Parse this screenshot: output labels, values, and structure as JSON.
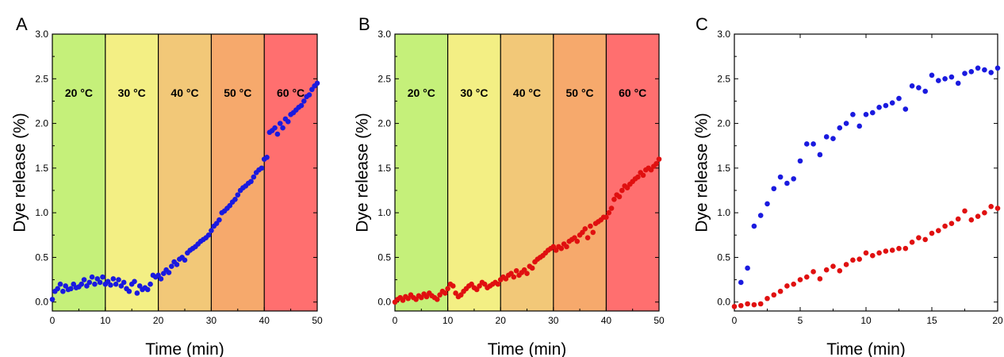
{
  "chart_data": [
    {
      "panel_label": "A",
      "type": "scatter",
      "xlabel": "Time (min)",
      "ylabel": "Dye release (%)",
      "xlim": [
        0,
        50
      ],
      "ylim": [
        -0.1,
        3.0
      ],
      "xticks": [
        0,
        10,
        20,
        30,
        40,
        50
      ],
      "yticks": [
        0.0,
        0.5,
        1.0,
        1.5,
        2.0,
        2.5,
        3.0
      ],
      "x_tick_labels": [
        "0",
        "10",
        "20",
        "30",
        "40",
        "50"
      ],
      "y_tick_labels": [
        "0.0",
        "0.5",
        "1.0",
        "1.5",
        "2.0",
        "2.5",
        "3.0"
      ],
      "bands": [
        {
          "label": "20 °C",
          "x0": 0,
          "x1": 10,
          "color": "#c5f07a"
        },
        {
          "label": "30 °C",
          "x0": 10,
          "x1": 20,
          "color": "#f3ef84"
        },
        {
          "label": "40 °C",
          "x0": 20,
          "x1": 30,
          "color": "#f2c878"
        },
        {
          "label": "50 °C",
          "x0": 30,
          "x1": 40,
          "color": "#f6a96c"
        },
        {
          "label": "60 °C",
          "x0": 40,
          "x1": 50,
          "color": "#ff6f6f"
        }
      ],
      "series": [
        {
          "color": "#1a1adf",
          "x": [
            0.0,
            0.5,
            1.0,
            1.5,
            2.0,
            2.5,
            3.0,
            3.5,
            4.0,
            4.5,
            5.0,
            5.5,
            6.0,
            6.5,
            7.0,
            7.5,
            8.0,
            8.5,
            9.0,
            9.5,
            10.0,
            10.5,
            11.0,
            11.5,
            12.0,
            12.5,
            13.0,
            13.5,
            14.0,
            14.5,
            15.0,
            15.5,
            16.0,
            16.5,
            17.0,
            17.5,
            18.0,
            18.5,
            19.0,
            19.5,
            20.0,
            20.5,
            21.0,
            21.5,
            22.0,
            22.5,
            23.0,
            23.5,
            24.0,
            24.5,
            25.0,
            25.5,
            26.0,
            26.5,
            27.0,
            27.5,
            28.0,
            28.5,
            29.0,
            29.5,
            30.0,
            30.5,
            31.0,
            31.5,
            32.0,
            32.5,
            33.0,
            33.5,
            34.0,
            34.5,
            35.0,
            35.5,
            36.0,
            36.5,
            37.0,
            37.5,
            38.0,
            38.5,
            39.0,
            39.5,
            40.0,
            40.5,
            41.0,
            41.5,
            42.0,
            42.5,
            43.0,
            43.5,
            44.0,
            44.5,
            45.0,
            45.5,
            46.0,
            46.5,
            47.0,
            47.5,
            48.0,
            48.5,
            49.0,
            49.5,
            50.0
          ],
          "y": [
            0.03,
            0.12,
            0.15,
            0.2,
            0.12,
            0.18,
            0.14,
            0.15,
            0.2,
            0.16,
            0.17,
            0.2,
            0.25,
            0.18,
            0.22,
            0.28,
            0.2,
            0.26,
            0.22,
            0.28,
            0.2,
            0.23,
            0.19,
            0.26,
            0.2,
            0.25,
            0.18,
            0.22,
            0.15,
            0.12,
            0.2,
            0.23,
            0.1,
            0.18,
            0.14,
            0.16,
            0.14,
            0.2,
            0.3,
            0.28,
            0.3,
            0.26,
            0.32,
            0.36,
            0.33,
            0.4,
            0.45,
            0.42,
            0.48,
            0.5,
            0.47,
            0.55,
            0.58,
            0.6,
            0.62,
            0.65,
            0.68,
            0.7,
            0.72,
            0.75,
            0.8,
            0.85,
            0.88,
            0.92,
            1.0,
            1.02,
            1.05,
            1.08,
            1.12,
            1.15,
            1.2,
            1.25,
            1.28,
            1.3,
            1.33,
            1.35,
            1.4,
            1.45,
            1.48,
            1.5,
            1.6,
            1.62,
            1.9,
            1.92,
            1.95,
            1.88,
            2.0,
            1.95,
            2.05,
            2.02,
            2.1,
            2.12,
            2.15,
            2.18,
            2.2,
            2.25,
            2.3,
            2.32,
            2.38,
            2.42,
            2.45
          ]
        }
      ]
    },
    {
      "panel_label": "B",
      "type": "scatter",
      "xlabel": "Time (min)",
      "ylabel": "Dye release (%)",
      "xlim": [
        0,
        50
      ],
      "ylim": [
        -0.1,
        3.0
      ],
      "xticks": [
        0,
        10,
        20,
        30,
        40,
        50
      ],
      "yticks": [
        0.0,
        0.5,
        1.0,
        1.5,
        2.0,
        2.5,
        3.0
      ],
      "x_tick_labels": [
        "0",
        "10",
        "20",
        "30",
        "40",
        "50"
      ],
      "y_tick_labels": [
        "0.0",
        "0.5",
        "1.0",
        "1.5",
        "2.0",
        "2.5",
        "3.0"
      ],
      "bands": [
        {
          "label": "20 °C",
          "x0": 0,
          "x1": 10,
          "color": "#c5f07a"
        },
        {
          "label": "30 °C",
          "x0": 10,
          "x1": 20,
          "color": "#f3ef84"
        },
        {
          "label": "40 °C",
          "x0": 20,
          "x1": 30,
          "color": "#f2c878"
        },
        {
          "label": "50 °C",
          "x0": 30,
          "x1": 40,
          "color": "#f6a96c"
        },
        {
          "label": "60 °C",
          "x0": 40,
          "x1": 50,
          "color": "#ff6f6f"
        }
      ],
      "series": [
        {
          "color": "#e01010",
          "x": [
            0.0,
            0.5,
            1.0,
            1.5,
            2.0,
            2.5,
            3.0,
            3.5,
            4.0,
            4.5,
            5.0,
            5.5,
            6.0,
            6.5,
            7.0,
            7.5,
            8.0,
            8.5,
            9.0,
            9.5,
            10.0,
            10.5,
            11.0,
            11.5,
            12.0,
            12.5,
            13.0,
            13.5,
            14.0,
            14.5,
            15.0,
            15.5,
            16.0,
            16.5,
            17.0,
            17.5,
            18.0,
            18.5,
            19.0,
            19.5,
            20.0,
            20.5,
            21.0,
            21.5,
            22.0,
            22.5,
            23.0,
            23.5,
            24.0,
            24.5,
            25.0,
            25.5,
            26.0,
            26.5,
            27.0,
            27.5,
            28.0,
            28.5,
            29.0,
            29.5,
            30.0,
            30.5,
            31.0,
            31.5,
            32.0,
            32.5,
            33.0,
            33.5,
            34.0,
            34.5,
            35.0,
            35.5,
            36.0,
            36.5,
            37.0,
            37.5,
            38.0,
            38.5,
            39.0,
            39.5,
            40.0,
            40.5,
            41.0,
            41.5,
            42.0,
            42.5,
            43.0,
            43.5,
            44.0,
            44.5,
            45.0,
            45.5,
            46.0,
            46.5,
            47.0,
            47.5,
            48.0,
            48.5,
            49.0,
            49.5,
            50.0
          ],
          "y": [
            0.0,
            0.03,
            0.05,
            0.02,
            0.06,
            0.04,
            0.08,
            0.05,
            0.03,
            0.07,
            0.05,
            0.09,
            0.06,
            0.1,
            0.07,
            0.05,
            0.03,
            0.08,
            0.12,
            0.1,
            0.15,
            0.2,
            0.18,
            0.1,
            0.06,
            0.08,
            0.12,
            0.15,
            0.18,
            0.2,
            0.16,
            0.14,
            0.18,
            0.22,
            0.2,
            0.16,
            0.18,
            0.2,
            0.22,
            0.2,
            0.25,
            0.28,
            0.26,
            0.3,
            0.32,
            0.28,
            0.35,
            0.3,
            0.33,
            0.36,
            0.32,
            0.4,
            0.38,
            0.45,
            0.48,
            0.5,
            0.52,
            0.55,
            0.58,
            0.6,
            0.62,
            0.58,
            0.62,
            0.6,
            0.65,
            0.62,
            0.68,
            0.7,
            0.72,
            0.68,
            0.75,
            0.78,
            0.82,
            0.72,
            0.85,
            0.78,
            0.88,
            0.9,
            0.92,
            0.95,
            0.95,
            1.0,
            1.05,
            1.15,
            1.2,
            1.18,
            1.25,
            1.3,
            1.28,
            1.32,
            1.35,
            1.38,
            1.4,
            1.45,
            1.42,
            1.48,
            1.5,
            1.48,
            1.52,
            1.55,
            1.6
          ]
        }
      ]
    },
    {
      "panel_label": "C",
      "type": "scatter",
      "xlabel": "Time (min)",
      "ylabel": "Dye release (%)",
      "xlim": [
        0,
        20
      ],
      "ylim": [
        -0.1,
        3.0
      ],
      "xticks": [
        0,
        5,
        10,
        15,
        20
      ],
      "yticks": [
        0.0,
        0.5,
        1.0,
        1.5,
        2.0,
        2.5,
        3.0
      ],
      "x_tick_labels": [
        "0",
        "5",
        "10",
        "15",
        "20"
      ],
      "y_tick_labels": [
        "0.0",
        "0.5",
        "1.0",
        "1.5",
        "2.0",
        "2.5",
        "3.0"
      ],
      "bands": [],
      "series": [
        {
          "color": "#1a1adf",
          "x": [
            0.5,
            1.0,
            1.5,
            2.0,
            2.5,
            3.0,
            3.5,
            4.0,
            4.5,
            5.0,
            5.5,
            6.0,
            6.5,
            7.0,
            7.5,
            8.0,
            8.5,
            9.0,
            9.5,
            10.0,
            10.5,
            11.0,
            11.5,
            12.0,
            12.5,
            13.0,
            13.5,
            14.0,
            14.5,
            15.0,
            15.5,
            16.0,
            16.5,
            17.0,
            17.5,
            18.0,
            18.5,
            19.0,
            19.5,
            20.0
          ],
          "y": [
            0.22,
            0.38,
            0.85,
            0.97,
            1.1,
            1.27,
            1.4,
            1.33,
            1.38,
            1.58,
            1.77,
            1.77,
            1.65,
            1.85,
            1.83,
            1.95,
            2.0,
            2.1,
            1.97,
            2.1,
            2.12,
            2.18,
            2.2,
            2.23,
            2.28,
            2.16,
            2.42,
            2.4,
            2.36,
            2.54,
            2.48,
            2.5,
            2.52,
            2.45,
            2.56,
            2.58,
            2.62,
            2.6,
            2.57,
            2.62
          ]
        },
        {
          "color": "#e01010",
          "x": [
            0.0,
            0.5,
            1.0,
            1.5,
            2.0,
            2.5,
            3.0,
            3.5,
            4.0,
            4.5,
            5.0,
            5.5,
            6.0,
            6.5,
            7.0,
            7.5,
            8.0,
            8.5,
            9.0,
            9.5,
            10.0,
            10.5,
            11.0,
            11.5,
            12.0,
            12.5,
            13.0,
            13.5,
            14.0,
            14.5,
            15.0,
            15.5,
            16.0,
            16.5,
            17.0,
            17.5,
            18.0,
            18.5,
            19.0,
            19.5,
            20.0
          ],
          "y": [
            -0.05,
            -0.04,
            -0.02,
            -0.03,
            -0.02,
            0.04,
            0.08,
            0.12,
            0.18,
            0.2,
            0.25,
            0.28,
            0.34,
            0.26,
            0.36,
            0.4,
            0.35,
            0.42,
            0.47,
            0.48,
            0.55,
            0.52,
            0.55,
            0.57,
            0.58,
            0.6,
            0.6,
            0.67,
            0.72,
            0.7,
            0.77,
            0.8,
            0.85,
            0.88,
            0.93,
            1.02,
            0.92,
            0.96,
            1.0,
            1.07,
            1.05
          ]
        }
      ]
    }
  ]
}
